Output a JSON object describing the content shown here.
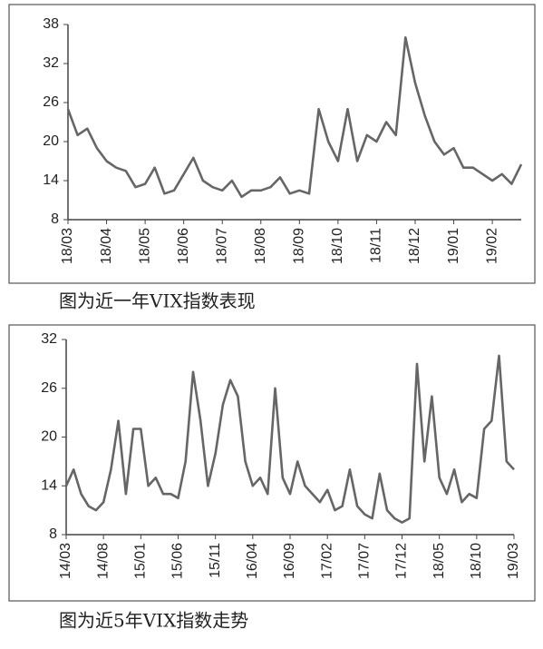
{
  "chart_data": [
    {
      "type": "line",
      "title": "图为近一年VIX指数表现",
      "x": [
        0,
        0.25,
        0.5,
        0.75,
        1,
        1.25,
        1.5,
        1.75,
        2,
        2.25,
        2.5,
        2.75,
        3,
        3.25,
        3.5,
        3.75,
        4,
        4.25,
        4.5,
        4.75,
        5,
        5.25,
        5.5,
        5.75,
        6,
        6.25,
        6.5,
        6.75,
        7,
        7.25,
        7.5,
        7.75,
        8,
        8.25,
        8.5,
        8.75,
        9,
        9.25,
        9.5,
        9.75,
        10,
        10.25,
        10.5,
        10.75,
        11,
        11.25,
        11.5,
        11.75
      ],
      "series": [
        {
          "color": "#666666",
          "values": [
            25,
            21,
            22,
            19,
            17,
            16,
            15.5,
            13,
            13.5,
            16,
            12,
            12.5,
            15,
            17.5,
            14,
            13,
            12.5,
            14,
            11.5,
            12.5,
            12.5,
            13,
            14.5,
            12,
            12.5,
            12,
            25,
            20,
            17,
            25,
            17,
            21,
            20,
            23,
            21,
            36,
            29,
            24,
            20,
            18,
            19,
            16,
            16,
            15,
            14,
            15,
            13.5,
            16.5
          ]
        }
      ],
      "xlim": [
        0,
        11.75
      ],
      "xticks": [
        {
          "value": 0,
          "label": "18/03"
        },
        {
          "value": 1,
          "label": "18/04"
        },
        {
          "value": 2,
          "label": "18/05"
        },
        {
          "value": 3,
          "label": "18/06"
        },
        {
          "value": 4,
          "label": "18/07"
        },
        {
          "value": 5,
          "label": "18/08"
        },
        {
          "value": 6,
          "label": "18/09"
        },
        {
          "value": 7,
          "label": "18/10"
        },
        {
          "value": 8,
          "label": "18/11"
        },
        {
          "value": 9,
          "label": "18/12"
        },
        {
          "value": 10,
          "label": "19/01"
        },
        {
          "value": 11,
          "label": "19/02"
        }
      ],
      "ylim": [
        8,
        38
      ],
      "yticks": [
        8,
        14,
        20,
        26,
        32,
        38
      ]
    },
    {
      "type": "line",
      "title": "图为近5年VIX指数走势",
      "x": [
        0,
        1,
        2,
        3,
        4,
        5,
        6,
        7,
        8,
        9,
        10,
        11,
        12,
        13,
        14,
        15,
        16,
        17,
        18,
        19,
        20,
        21,
        22,
        23,
        24,
        25,
        26,
        27,
        28,
        29,
        30,
        31,
        32,
        33,
        34,
        35,
        36,
        37,
        38,
        39,
        40,
        41,
        42,
        43,
        44,
        45,
        46,
        47,
        48,
        49,
        50,
        51,
        52,
        53,
        54,
        55,
        56,
        57,
        58,
        59,
        60
      ],
      "series": [
        {
          "color": "#666666",
          "values": [
            14,
            16,
            13,
            11.5,
            11,
            12,
            16,
            22,
            13,
            21,
            21,
            14,
            15,
            13,
            13,
            12.5,
            17,
            28,
            22,
            14,
            18,
            24,
            27,
            25,
            17,
            14,
            15,
            13,
            26,
            15,
            13,
            17,
            14,
            13,
            12,
            13.5,
            11,
            11.5,
            16,
            11.5,
            10.5,
            10,
            15.5,
            11,
            10,
            9.5,
            10,
            29,
            17,
            25,
            15,
            13,
            16,
            12,
            13,
            12.5,
            21,
            22,
            30,
            17,
            16
          ]
        }
      ],
      "xlim": [
        0,
        60
      ],
      "xticks": [
        {
          "value": 0,
          "label": "14/03"
        },
        {
          "value": 5,
          "label": "14/08"
        },
        {
          "value": 10,
          "label": "15/01"
        },
        {
          "value": 15,
          "label": "15/06"
        },
        {
          "value": 20,
          "label": "15/11"
        },
        {
          "value": 25,
          "label": "16/04"
        },
        {
          "value": 30,
          "label": "16/09"
        },
        {
          "value": 35,
          "label": "17/02"
        },
        {
          "value": 40,
          "label": "17/07"
        },
        {
          "value": 45,
          "label": "17/12"
        },
        {
          "value": 50,
          "label": "18/05"
        },
        {
          "value": 55,
          "label": "18/10"
        },
        {
          "value": 60,
          "label": "19/03"
        }
      ],
      "ylim": [
        8,
        32
      ],
      "yticks": [
        8,
        14,
        20,
        26,
        32
      ]
    }
  ]
}
